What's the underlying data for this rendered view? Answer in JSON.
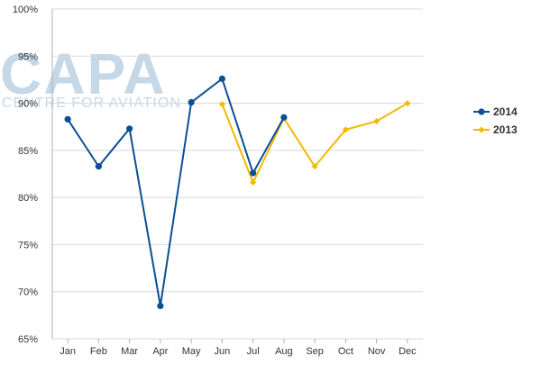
{
  "watermark": {
    "brand": "CAPA",
    "tagline": "CENTRE FOR AVIATION"
  },
  "chart_data": {
    "type": "line",
    "title": "",
    "xlabel": "",
    "ylabel": "",
    "categories": [
      "Jan",
      "Feb",
      "Mar",
      "Apr",
      "May",
      "Jun",
      "Jul",
      "Aug",
      "Sep",
      "Oct",
      "Nov",
      "Dec"
    ],
    "y_ticks": [
      "65%",
      "70%",
      "75%",
      "80%",
      "85%",
      "90%",
      "95%",
      "100%"
    ],
    "ylim": [
      65,
      100
    ],
    "grid": true,
    "legend_position": "right",
    "series": [
      {
        "name": "2014",
        "color": "#0b4f96",
        "marker": "circle",
        "values": [
          88.3,
          83.3,
          87.3,
          68.5,
          90.1,
          92.6,
          82.6,
          88.5,
          null,
          null,
          null,
          null
        ]
      },
      {
        "name": "2013",
        "color": "#f5b800",
        "marker": "diamond",
        "values": [
          null,
          null,
          null,
          null,
          null,
          89.9,
          81.6,
          88.4,
          83.3,
          87.2,
          88.1,
          90.0
        ]
      }
    ]
  }
}
